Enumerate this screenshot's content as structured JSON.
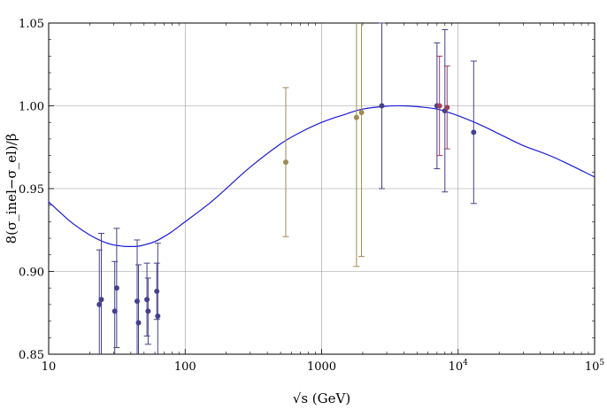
{
  "chart_data": {
    "type": "scatter",
    "title": "",
    "xlabel": "√s (GeV)",
    "ylabel": "8(σ_inel−σ_el)/β",
    "x_scale": "log",
    "xlim": [
      10,
      100000
    ],
    "ylim": [
      0.85,
      1.05
    ],
    "grid": true,
    "x_ticks": [
      {
        "value": 10,
        "label": "10"
      },
      {
        "value": 100,
        "label": "100"
      },
      {
        "value": 1000,
        "label": "1000"
      },
      {
        "value": 10000,
        "label": "10",
        "sup": "4"
      },
      {
        "value": 100000,
        "label": "10",
        "sup": "5"
      }
    ],
    "y_ticks": [
      {
        "value": 0.85,
        "label": "0.85"
      },
      {
        "value": 0.9,
        "label": "0.90"
      },
      {
        "value": 0.95,
        "label": "0.95"
      },
      {
        "value": 1.0,
        "label": "1.00"
      },
      {
        "value": 1.05,
        "label": "1.05"
      }
    ],
    "colors": {
      "curve": "#1a1ad6",
      "isr": "#44408a",
      "spps": "#9e8a50",
      "lhc_red": "#a33d5c",
      "grid": "#9a9a9a"
    },
    "curve": {
      "x": [
        10,
        12,
        15,
        20,
        25,
        30,
        35,
        40,
        45,
        50,
        60,
        70,
        80,
        100,
        150,
        200,
        300,
        500,
        700,
        1000,
        1500,
        2000,
        3000,
        4000,
        5000,
        7000,
        10000,
        15000,
        20000,
        30000,
        50000,
        100000
      ],
      "y": [
        0.942,
        0.936,
        0.929,
        0.922,
        0.918,
        0.916,
        0.9152,
        0.915,
        0.9152,
        0.916,
        0.918,
        0.921,
        0.924,
        0.93,
        0.941,
        0.95,
        0.963,
        0.977,
        0.984,
        0.99,
        0.995,
        0.998,
        0.9998,
        1.0,
        0.9995,
        0.998,
        0.994,
        0.988,
        0.983,
        0.976,
        0.969,
        0.957
      ]
    },
    "series": [
      {
        "color_key": "isr",
        "points": [
          {
            "x": 23.5,
            "y": 0.88,
            "lo": 0.848,
            "hi": 0.913
          },
          {
            "x": 24.3,
            "y": 0.883,
            "lo": 0.843,
            "hi": 0.923
          },
          {
            "x": 30.5,
            "y": 0.876,
            "lo": 0.846,
            "hi": 0.906
          },
          {
            "x": 31.5,
            "y": 0.89,
            "lo": 0.854,
            "hi": 0.926
          },
          {
            "x": 44.5,
            "y": 0.882,
            "lo": 0.845,
            "hi": 0.919
          },
          {
            "x": 45.5,
            "y": 0.869,
            "lo": 0.835,
            "hi": 0.904
          },
          {
            "x": 52.5,
            "y": 0.883,
            "lo": 0.861,
            "hi": 0.905
          },
          {
            "x": 53.5,
            "y": 0.876,
            "lo": 0.856,
            "hi": 0.896
          },
          {
            "x": 62.0,
            "y": 0.888,
            "lo": 0.871,
            "hi": 0.905
          },
          {
            "x": 63.0,
            "y": 0.873,
            "lo": 0.829,
            "hi": 0.917
          },
          {
            "x": 2760,
            "y": 1.0,
            "lo": 0.95,
            "hi": 1.05
          },
          {
            "x": 7000,
            "y": 1.0,
            "lo": 0.962,
            "hi": 1.038
          },
          {
            "x": 8000,
            "y": 0.997,
            "lo": 0.948,
            "hi": 1.046
          },
          {
            "x": 13000,
            "y": 0.984,
            "lo": 0.941,
            "hi": 1.027
          }
        ]
      },
      {
        "color_key": "spps",
        "points": [
          {
            "x": 546,
            "y": 0.966,
            "lo": 0.921,
            "hi": 1.011
          },
          {
            "x": 1800,
            "y": 0.993,
            "lo": 0.903,
            "hi": 1.083
          },
          {
            "x": 1960,
            "y": 0.996,
            "lo": 0.909,
            "hi": 1.083
          }
        ]
      },
      {
        "color_key": "lhc_red",
        "points": [
          {
            "x": 7300,
            "y": 1.0,
            "lo": 0.97,
            "hi": 1.03
          },
          {
            "x": 8300,
            "y": 0.999,
            "lo": 0.974,
            "hi": 1.024
          }
        ]
      }
    ]
  }
}
